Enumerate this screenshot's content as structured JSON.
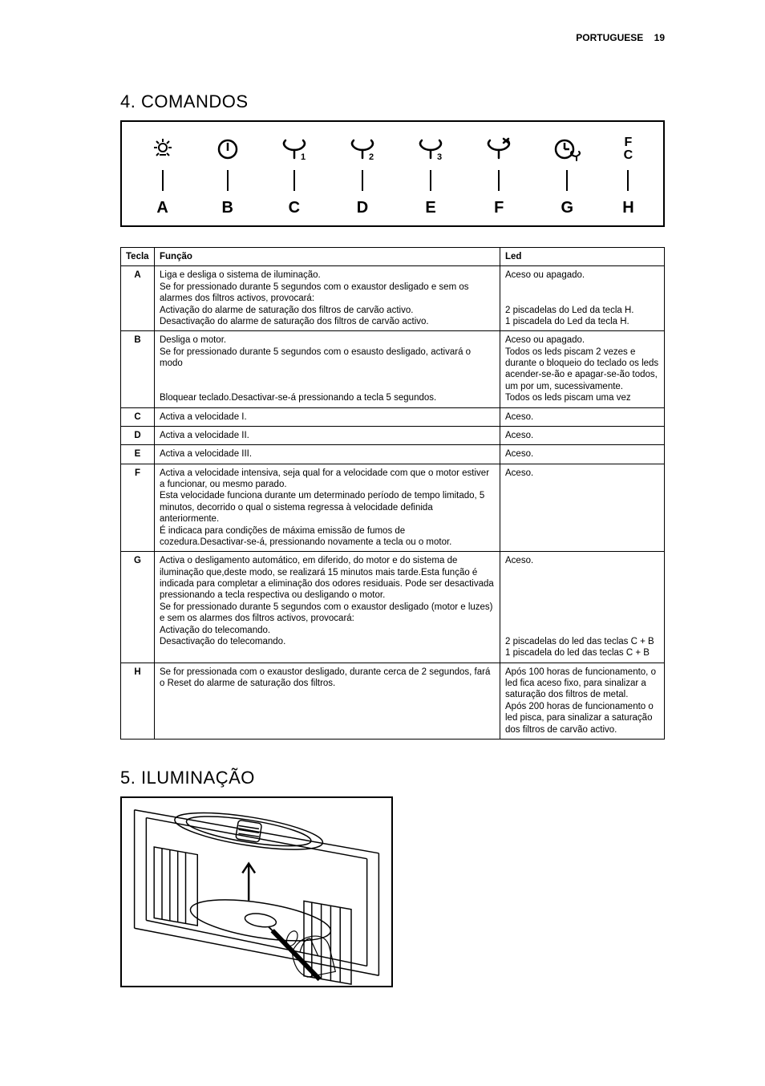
{
  "header": {
    "lang": "PORTUGUESE",
    "page_number": "19"
  },
  "section4": {
    "title": "4.  COMANDOS"
  },
  "section5": {
    "title": "5.  ILUMINAÇÃO"
  },
  "controls": {
    "labels": {
      "A": "A",
      "B": "B",
      "C": "C",
      "D": "D",
      "E": "E",
      "F": "F",
      "G": "G",
      "H": "H"
    },
    "fc_top": "F",
    "fc_bot": "C"
  },
  "table": {
    "headers": {
      "tecla": "Tecla",
      "funcao": "Função",
      "led": "Led"
    },
    "rows": [
      {
        "key": "A",
        "funcao": "Liga e desliga o sistema de iluminação.\nSe for pressionado durante 5 segundos com o exaustor desligado e sem os alarmes dos filtros activos, provocará:\nActivação do alarme de saturação dos filtros de carvão activo.\nDesactivação do alarme de saturação dos filtros de carvão activo.",
        "led": "Aceso ou apagado.\n\n\n2 piscadelas do Led da tecla H.\n1 piscadela do Led da tecla H."
      },
      {
        "key": "B",
        "funcao": "Desliga o motor.\nSe for pressionado durante 5 segundos com o esausto desligado, activará o modo\n\n\nBloquear teclado.Desactivar-se-á pressionando a tecla 5 segundos.",
        "led": "Aceso ou apagado.\nTodos os leds piscam 2 vezes e durante o bloqueio do teclado os leds acender-se-ão e apagar-se-ão todos, um por um, sucessivamente.\nTodos os leds piscam uma vez"
      },
      {
        "key": "C",
        "funcao": "Activa a velocidade I.",
        "led": "Aceso."
      },
      {
        "key": "D",
        "funcao": "Activa a velocidade II.",
        "led": "Aceso."
      },
      {
        "key": "E",
        "funcao": "Activa a velocidade III.",
        "led": "Aceso."
      },
      {
        "key": "F",
        "funcao": "Activa a velocidade intensiva, seja qual for a velocidade com que o motor estiver a funcionar, ou mesmo parado.\nEsta velocidade funciona durante um determinado período de tempo limitado, 5 minutos, decorrido o qual o sistema regressa à velocidade definida anteriormente.\nÉ indicaca para condições de máxima emissão de fumos de cozedura.Desactivar-se-á, pressionando novamente a tecla ou o motor.",
        "led": "Aceso."
      },
      {
        "key": "G",
        "funcao": "Activa o desligamento automático, em diferido, do motor e do sistema de iluminação que,deste modo, se realizará 15 minutos mais tarde.Esta função é indicada para completar a eliminação dos odores residuais. Pode ser desactivada pressionando a tecla respectiva ou desligando o motor.\nSe for pressionado durante 5 segundos com o exaustor desligado (motor e luzes) e sem os alarmes dos filtros activos, provocará:\nActivação do telecomando.\nDesactivação do telecomando.",
        "led": "Aceso.\n\n\n\n\n\n\n2 piscadelas do led das teclas C + B\n1 piscadela do led das teclas C + B"
      },
      {
        "key": "H",
        "funcao": "Se for pressionada com o exaustor desligado, durante cerca de 2 segundos, fará o Reset do alarme de saturação dos filtros.",
        "led": "Após 100 horas de funcionamento, o led fica aceso fixo, para sinalizar a saturação dos filtros de metal.\nApós 200 horas de funcionamento o led pisca, para sinalizar a saturação dos filtros de carvão activo."
      }
    ]
  }
}
